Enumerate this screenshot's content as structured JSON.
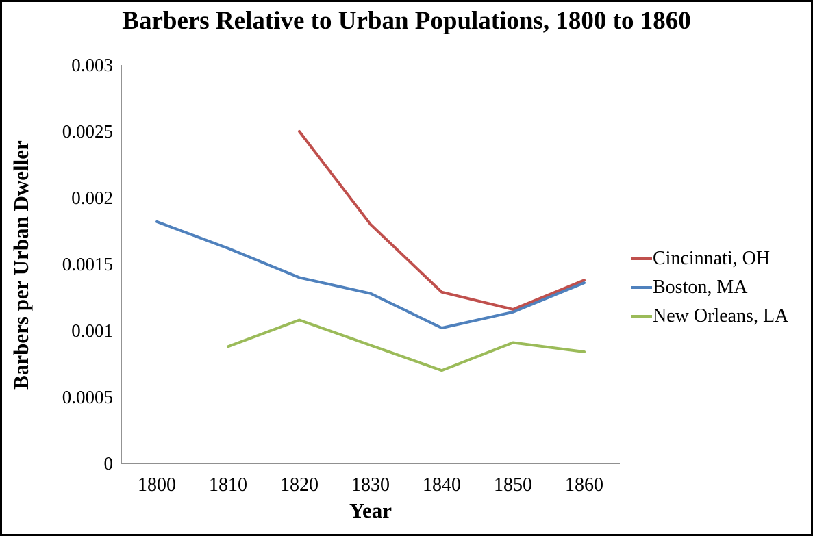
{
  "page": {
    "background": "#ffffff",
    "border_color": "#000000",
    "text_color": "#000000"
  },
  "chart_data": {
    "type": "line",
    "title": "Barbers Relative to Urban Populations, 1800 to 1860",
    "xlabel": "Year",
    "ylabel": "Barbers per Urban Dweller",
    "categories": [
      "1800",
      "1810",
      "1820",
      "1830",
      "1840",
      "1850",
      "1860"
    ],
    "ylim": [
      0,
      0.003
    ],
    "y_ticks": [
      {
        "label": "0",
        "value": 0
      },
      {
        "label": "0.0005",
        "value": 0.0005
      },
      {
        "label": "0.001",
        "value": 0.001
      },
      {
        "label": "0.0015",
        "value": 0.0015
      },
      {
        "label": "0.002",
        "value": 0.002
      },
      {
        "label": "0.0025",
        "value": 0.0025
      },
      {
        "label": "0.003",
        "value": 0.003
      }
    ],
    "grid": false,
    "legend_position": "right",
    "axis_color": "#808080",
    "series": [
      {
        "name": "Cincinnati, OH",
        "color": "#C0504D",
        "values": [
          null,
          null,
          0.0025,
          0.0018,
          0.00129,
          0.00116,
          0.00138
        ]
      },
      {
        "name": "Boston, MA",
        "color": "#4F81BD",
        "values": [
          0.00182,
          0.00162,
          0.0014,
          0.00128,
          0.00102,
          0.00114,
          0.00136
        ]
      },
      {
        "name": "New Orleans, LA",
        "color": "#9BBB59",
        "values": [
          null,
          0.00088,
          0.00108,
          0.00089,
          0.0007,
          0.00091,
          0.00084
        ]
      }
    ]
  }
}
